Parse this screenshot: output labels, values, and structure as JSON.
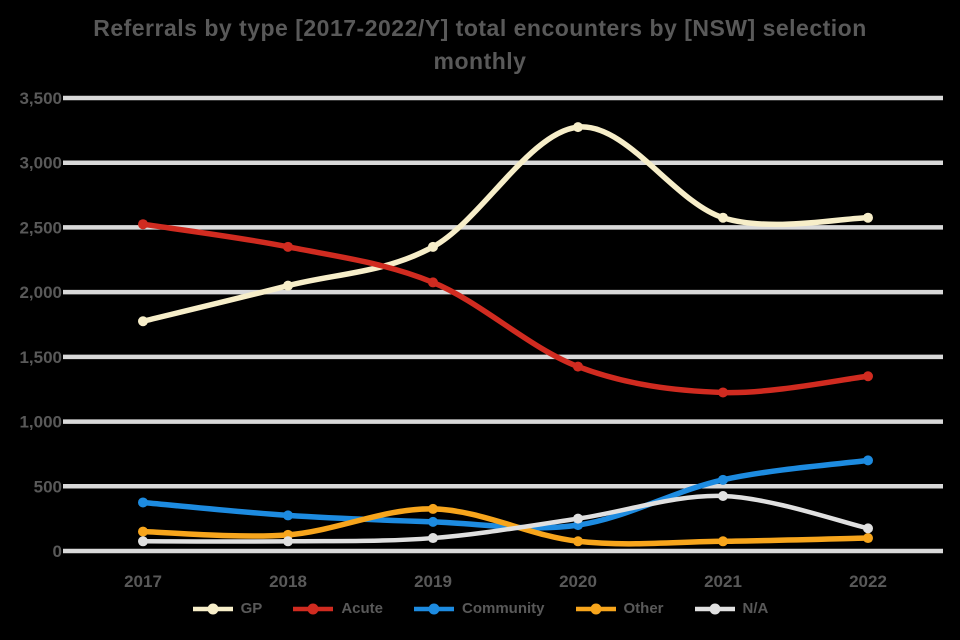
{
  "title": {
    "line1": "Referrals by type [2017-2022/Y] total encounters by [NSW] selection",
    "line2": "monthly"
  },
  "chart_data": {
    "type": "line",
    "title": "Referrals by type [2017-2022/Y] total encounters by [NSW] selection monthly",
    "x": [
      "2017",
      "2018",
      "2019",
      "2020",
      "2021",
      "2022"
    ],
    "series": [
      {
        "name": "GP",
        "color": "#f7eec9",
        "values": [
          1775,
          2050,
          2350,
          3275,
          2575,
          2575
        ]
      },
      {
        "name": "Acute",
        "color": "#d02b20",
        "values": [
          2525,
          2350,
          2075,
          1425,
          1225,
          1350
        ]
      },
      {
        "name": "Community",
        "color": "#1d8be0",
        "values": [
          375,
          275,
          225,
          200,
          550,
          700
        ]
      },
      {
        "name": "Other",
        "color": "#f7a51c",
        "values": [
          150,
          125,
          325,
          75,
          75,
          100
        ]
      },
      {
        "name": "N/A",
        "color": "#e0e0e0",
        "values": [
          75,
          75,
          100,
          250,
          425,
          175
        ]
      }
    ],
    "ylim": [
      0,
      3500
    ],
    "yticks": [
      "3,500",
      "3,000",
      "2,500",
      "2,000",
      "1,500",
      "1,000",
      "500",
      "0"
    ],
    "xlabel": "",
    "ylabel": "",
    "grid": true,
    "legend_position": "bottom",
    "style": {
      "background": "#000000",
      "text_color": "#595959",
      "gridline_color": "#d9d9d9"
    }
  }
}
